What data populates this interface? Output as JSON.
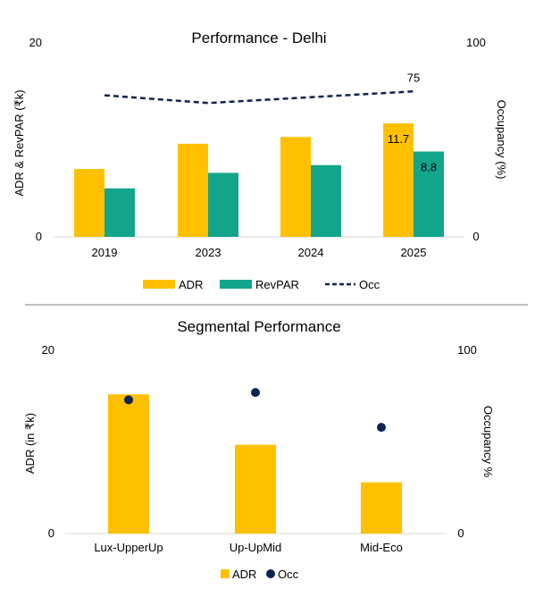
{
  "colors": {
    "adr": "#FFC000",
    "revpar": "#12A58C",
    "occ": "#0D2452",
    "divider": "#7F7F7F"
  },
  "chart_data": [
    {
      "type": "bar",
      "title": "Performance - Delhi",
      "categories": [
        "2019",
        "2023",
        "2024",
        "2025"
      ],
      "series": [
        {
          "name": "ADR",
          "type": "bar",
          "axis": "left",
          "values": [
            7.0,
            9.6,
            10.3,
            11.7
          ]
        },
        {
          "name": "RevPAR",
          "type": "bar",
          "axis": "left",
          "values": [
            5.0,
            6.6,
            7.4,
            8.8
          ]
        },
        {
          "name": "Occ",
          "type": "line",
          "style": "dashed",
          "axis": "right",
          "values": [
            73,
            69,
            72,
            75
          ]
        }
      ],
      "ylabel": "ADR & RevPAR (₹k)",
      "y2label": "Occupancy (%)",
      "ylim": [
        0,
        20
      ],
      "y2lim": [
        0,
        100
      ],
      "yticks": [
        "0",
        "20"
      ],
      "y2ticks": [
        "0",
        "100"
      ],
      "data_labels": {
        "adr_2025": "11.7",
        "revpar_2025": "8.8",
        "occ_2025": "75"
      },
      "legend": {
        "position": "bottom",
        "items": [
          "ADR",
          "RevPAR",
          "Occ"
        ]
      },
      "grid": false
    },
    {
      "type": "bar",
      "title": "Segmental Performance",
      "categories": [
        "Lux-UpperUp",
        "Up-UpMid",
        "Mid-Eco"
      ],
      "series": [
        {
          "name": "ADR",
          "type": "bar",
          "axis": "left",
          "values": [
            15.2,
            9.7,
            5.6
          ]
        },
        {
          "name": "Occ",
          "type": "scatter",
          "axis": "right",
          "values": [
            73,
            77,
            58
          ]
        }
      ],
      "ylabel": "ADR (in ₹k)",
      "y2label": "Occupancy %",
      "ylim": [
        0,
        20
      ],
      "y2lim": [
        0,
        100
      ],
      "yticks": [
        "0",
        "20"
      ],
      "y2ticks": [
        "0",
        "100"
      ],
      "legend": {
        "position": "bottom",
        "items": [
          "ADR",
          "Occ"
        ]
      },
      "grid": false
    }
  ]
}
